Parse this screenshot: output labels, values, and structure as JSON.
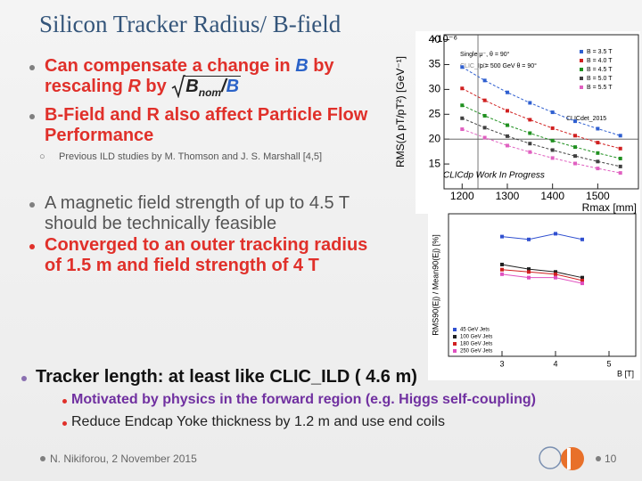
{
  "title": "Silicon Tracker Radius/ B-field",
  "bullets": [
    {
      "parts": [
        "Can compensate a change in ",
        "B",
        " by",
        "rescaling ",
        "R",
        " by "
      ],
      "formula": {
        "num": "B",
        "sub": "nom",
        "slash": "/",
        "den": "B"
      }
    },
    {
      "text": "B-Field and R also affect Particle Flow Performance",
      "sub": "Previous ILD studies by M. Thomson and J. S. Marshall [4,5]"
    },
    {
      "text": "A magnetic field strength of up to 4.5 T should be technically feasible"
    },
    {
      "text": "Converged to an outer tracking radius of 1.5 m and field strength of 4 T"
    },
    {
      "text": "Tracker length: at least like CLIC_ILD ( 4.6 m)",
      "subs": [
        "Motivated by physics in the forward region (e.g. Higgs self-coupling)",
        "Reduce Endcap Yoke thickness by 1.2 m and use end coils"
      ]
    }
  ],
  "footer": {
    "author": "N. Nikiforou, 2 November 2015",
    "page": "10"
  },
  "plots": [
    {
      "type": "line",
      "y_label": "RMS(Δ pT/pT²) [GeV⁻¹]",
      "y_unit_label": "×10⁻⁶",
      "x_label": "Rmax [mm]",
      "header": "Single μ⁻, θ = 90°",
      "header2": "CLIC_ILD",
      "header3": "p = 500 GeV θ = 90°",
      "annotations": [
        "CLICdet_2015",
        "CLICdp Work In Progress"
      ],
      "guides": {
        "x": 1235,
        "y": 20
      },
      "x": [
        1200,
        1250,
        1300,
        1350,
        1400,
        1450,
        1500,
        1550
      ],
      "xlim": [
        1160,
        1590
      ],
      "ylim": [
        10,
        41
      ],
      "xticks": [
        1200,
        1300,
        1400,
        1500
      ],
      "yticks": [
        15,
        20,
        25,
        30,
        35,
        40
      ],
      "series": [
        {
          "name": "B = 3.5 T",
          "color": "#2f5fd0",
          "values": [
            34.5,
            31.8,
            29.4,
            27.3,
            25.4,
            23.6,
            22.1,
            20.7
          ]
        },
        {
          "name": "B = 4.0 T",
          "color": "#d02020",
          "values": [
            30.2,
            27.8,
            25.7,
            23.9,
            22.2,
            20.7,
            19.3,
            18.1
          ]
        },
        {
          "name": "B = 4.5 T",
          "color": "#209020",
          "values": [
            26.8,
            24.7,
            22.8,
            21.2,
            19.7,
            18.4,
            17.2,
            16.1
          ]
        },
        {
          "name": "B = 5.0 T",
          "color": "#404040",
          "values": [
            24.2,
            22.3,
            20.6,
            19.1,
            17.8,
            16.6,
            15.5,
            14.5
          ]
        },
        {
          "name": "B = 5.5 T",
          "color": "#e060c0",
          "values": [
            22.0,
            20.3,
            18.7,
            17.4,
            16.2,
            15.1,
            14.1,
            13.2
          ]
        }
      ]
    },
    {
      "type": "line",
      "y_label": "RMS90(Ej) / Mean90(Ej) [%]",
      "x_label": "B [T]",
      "x": [
        3,
        3.5,
        4,
        4.5
      ],
      "xlim": [
        2,
        5.5
      ],
      "ylim": [
        2.5,
        5
      ],
      "xticks": [
        3,
        4,
        5
      ],
      "series": [
        {
          "name": "45 GeV Jets",
          "color": "#3050d0",
          "values": [
            4.6,
            4.55,
            4.65,
            4.55
          ]
        },
        {
          "name": "100 GeV Jets",
          "color": "#202020",
          "values": [
            4.11,
            4.03,
            3.98,
            3.88
          ]
        },
        {
          "name": "180 GeV Jets",
          "color": "#d02020",
          "values": [
            4.02,
            3.98,
            3.94,
            3.83
          ]
        },
        {
          "name": "250 GeV Jets",
          "color": "#e050c0",
          "values": [
            3.94,
            3.88,
            3.88,
            3.78
          ]
        }
      ]
    }
  ]
}
